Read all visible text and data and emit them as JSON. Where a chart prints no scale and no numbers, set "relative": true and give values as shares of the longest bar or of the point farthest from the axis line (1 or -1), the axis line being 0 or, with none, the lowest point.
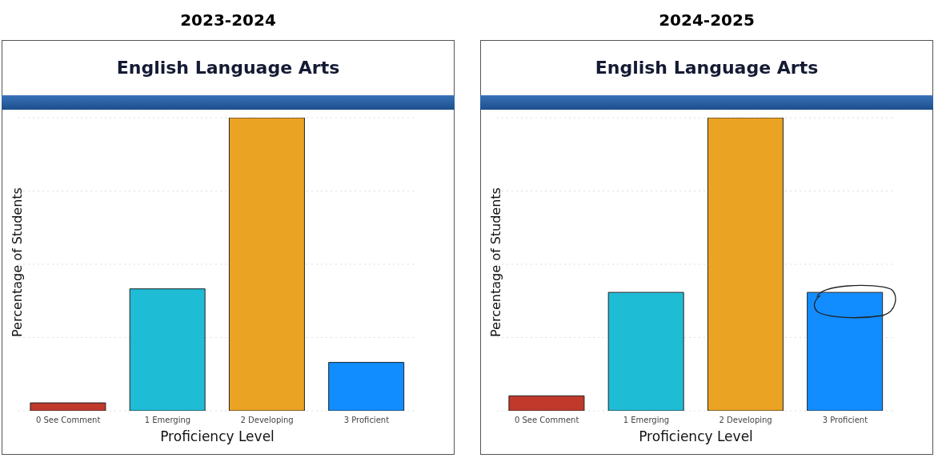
{
  "chart_data": [
    {
      "type": "bar",
      "title": "2023-2024",
      "subtitle": "English Language Arts",
      "xlabel": "Proficiency Level",
      "ylabel": "Percentage of Students",
      "categories": [
        "0 See Comment",
        "1 Emerging",
        "2 Developing",
        "3 Proficient"
      ],
      "values": [
        0.027,
        0.416,
        1,
        0.165
      ],
      "colors": [
        "#c0392b",
        "#1fbcd6",
        "#eba323",
        "#118dff"
      ],
      "relative": true,
      "grid": "y"
    },
    {
      "type": "bar",
      "title": "2024-2025",
      "subtitle": "English Language Arts",
      "xlabel": "Proficiency Level",
      "ylabel": "Percentage of Students",
      "categories": [
        "0 See Comment",
        "1 Emerging",
        "2 Developing",
        "3 Proficient"
      ],
      "values": [
        0.051,
        0.404,
        1,
        0.404
      ],
      "colors": [
        "#c0392b",
        "#1fbcd6",
        "#eba323",
        "#118dff"
      ],
      "relative": true,
      "grid": "y"
    }
  ]
}
